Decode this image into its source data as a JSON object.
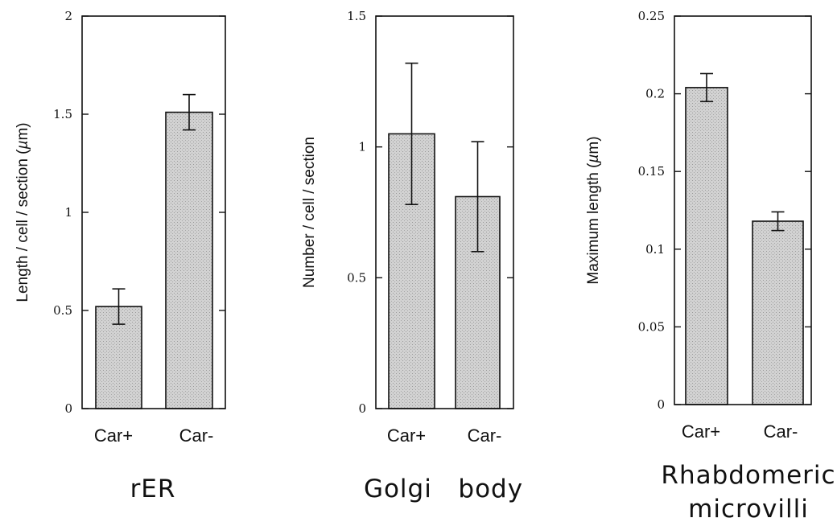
{
  "chart_data": [
    {
      "type": "bar",
      "title": "rER",
      "ylabel": "Length / cell / section (µm)",
      "categories": [
        "Car+",
        "Car-"
      ],
      "values": [
        0.52,
        1.51
      ],
      "errors": [
        0.09,
        0.09
      ],
      "ylim": [
        0,
        2
      ],
      "yticks": [
        0,
        0.5,
        1,
        1.5,
        2
      ],
      "ytick_labels": [
        "0",
        "0.5",
        "1",
        "1.5",
        "2"
      ],
      "bar_color": "#c9c9c9",
      "grid": false
    },
    {
      "type": "bar",
      "title": "Golgi   body",
      "ylabel": "Number / cell / section",
      "categories": [
        "Car+",
        "Car-"
      ],
      "values": [
        1.05,
        0.81
      ],
      "errors": [
        0.27,
        0.21
      ],
      "ylim": [
        0,
        1.5
      ],
      "yticks": [
        0,
        0.5,
        1,
        1.5
      ],
      "ytick_labels": [
        "0",
        "0.5",
        "1",
        "1.5"
      ],
      "bar_color": "#c9c9c9",
      "grid": false
    },
    {
      "type": "bar",
      "title": [
        "Rhabdomeric",
        "microvilli"
      ],
      "ylabel": "Maximum  length  (µm)",
      "categories": [
        "Car+",
        "Car-"
      ],
      "values": [
        0.204,
        0.118
      ],
      "errors": [
        0.009,
        0.006
      ],
      "ylim": [
        0,
        0.25
      ],
      "yticks": [
        0,
        0.05,
        0.1,
        0.15,
        0.2,
        0.25
      ],
      "ytick_labels": [
        "0",
        "0.05",
        "0.1",
        "0.15",
        "0.2",
        "0.25"
      ],
      "bar_color": "#c9c9c9",
      "grid": false
    }
  ]
}
